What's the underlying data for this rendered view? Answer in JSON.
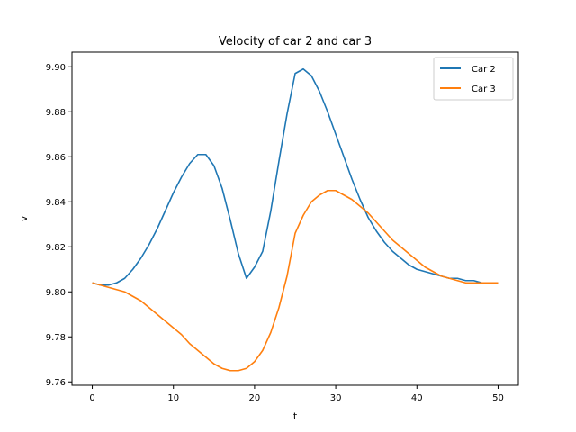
{
  "chart_data": {
    "type": "line",
    "title": "Velocity of car 2 and car 3",
    "xlabel": "t",
    "ylabel": "v",
    "xlim": [
      -2.5,
      52.5
    ],
    "ylim": [
      9.7585,
      9.9065
    ],
    "xticks": [
      0,
      10,
      20,
      30,
      40,
      50
    ],
    "yticks": [
      9.76,
      9.78,
      9.8,
      9.82,
      9.84,
      9.86,
      9.88,
      9.9
    ],
    "ytick_labels": [
      "9.76",
      "9.78",
      "9.80",
      "9.82",
      "9.84",
      "9.86",
      "9.88",
      "9.90"
    ],
    "grid": false,
    "legend_position": "top-right",
    "x": [
      0,
      1,
      2,
      3,
      4,
      5,
      6,
      7,
      8,
      9,
      10,
      11,
      12,
      13,
      14,
      15,
      16,
      17,
      18,
      19,
      20,
      21,
      22,
      23,
      24,
      25,
      26,
      27,
      28,
      29,
      30,
      31,
      32,
      33,
      34,
      35,
      36,
      37,
      38,
      39,
      40,
      41,
      42,
      43,
      44,
      45,
      46,
      47,
      48,
      49,
      50
    ],
    "series": [
      {
        "name": "Car 2",
        "color": "#1f77b4",
        "values": [
          9.804,
          9.803,
          9.803,
          9.804,
          9.806,
          9.81,
          9.815,
          9.821,
          9.828,
          9.836,
          9.844,
          9.851,
          9.857,
          9.861,
          9.861,
          9.856,
          9.846,
          9.832,
          9.817,
          9.806,
          9.811,
          9.818,
          9.836,
          9.858,
          9.879,
          9.897,
          9.899,
          9.896,
          9.889,
          9.88,
          9.87,
          9.86,
          9.85,
          9.841,
          9.833,
          9.827,
          9.822,
          9.818,
          9.815,
          9.812,
          9.81,
          9.809,
          9.808,
          9.807,
          9.806,
          9.806,
          9.805,
          9.805,
          9.804,
          9.804,
          9.804
        ]
      },
      {
        "name": "Car 3",
        "color": "#ff7f0e",
        "values": [
          9.804,
          9.803,
          9.802,
          9.801,
          9.8,
          9.798,
          9.796,
          9.793,
          9.79,
          9.787,
          9.784,
          9.781,
          9.777,
          9.774,
          9.771,
          9.768,
          9.766,
          9.765,
          9.765,
          9.766,
          9.769,
          9.774,
          9.782,
          9.793,
          9.807,
          9.826,
          9.834,
          9.84,
          9.843,
          9.845,
          9.845,
          9.843,
          9.841,
          9.838,
          9.835,
          9.831,
          9.827,
          9.823,
          9.82,
          9.817,
          9.814,
          9.811,
          9.809,
          9.807,
          9.806,
          9.805,
          9.804,
          9.804,
          9.804,
          9.804,
          9.804
        ]
      }
    ]
  }
}
